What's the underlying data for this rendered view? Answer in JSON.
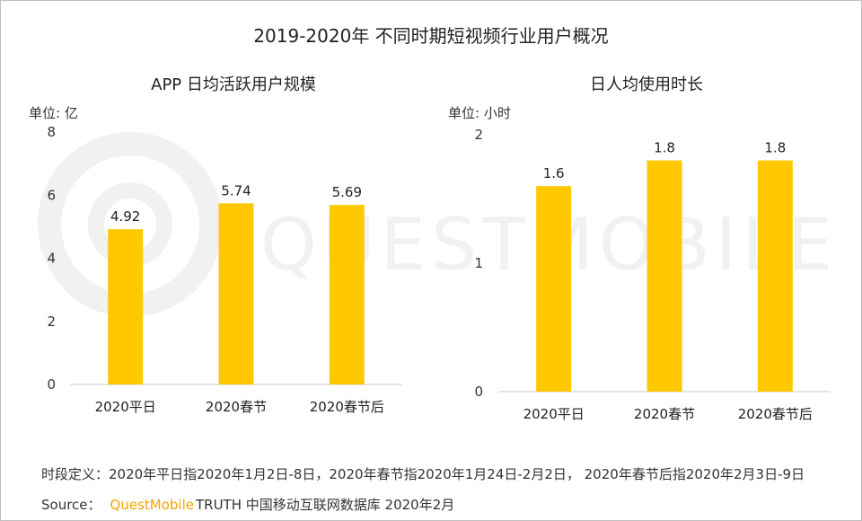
{
  "main_title": "2019-2020年 不同时期短视频行业用户概况",
  "watermark": "QUESTMOBILE",
  "colors": {
    "bar": "#FFC800",
    "axis": "#c8c8c8",
    "watermark": "#f1f1f1",
    "brand": "#F5A300"
  },
  "chart_data": [
    {
      "type": "bar",
      "title": "APP 日均活跃用户规模",
      "unit_label": "单位: 亿",
      "categories": [
        "2020平日",
        "2020春节",
        "2020春节后"
      ],
      "values": [
        4.92,
        5.74,
        5.69
      ],
      "value_labels": [
        "4.92",
        "5.74",
        "5.69"
      ],
      "ylim": [
        0,
        8
      ],
      "yticks": [
        0,
        2,
        4,
        6,
        8
      ],
      "ytick_labels": [
        "0",
        "2",
        "4",
        "6",
        "8"
      ],
      "grid": false,
      "legend": "none"
    },
    {
      "type": "bar",
      "title": "日人均使用时长",
      "unit_label": "单位: 小时",
      "categories": [
        "2020平日",
        "2020春节",
        "2020春节后"
      ],
      "values": [
        1.6,
        1.8,
        1.8
      ],
      "value_labels": [
        "1.6",
        "1.8",
        "1.8"
      ],
      "ylim": [
        0,
        2
      ],
      "yticks": [
        0,
        1,
        2
      ],
      "ytick_labels": [
        "0",
        "1",
        "2"
      ],
      "grid": false,
      "legend": "none"
    }
  ],
  "footer": {
    "definition": "时段定义：2020年平日指2020年1月2日-8日，2020年春节指2020年1月24日-2月2日， 2020年春节后指2020年2月3日-9日",
    "source_label": "Source：",
    "source_brand": "QuestMobile",
    "source_rest": "TRUTH 中国移动互联网数据库 2020年2月"
  }
}
